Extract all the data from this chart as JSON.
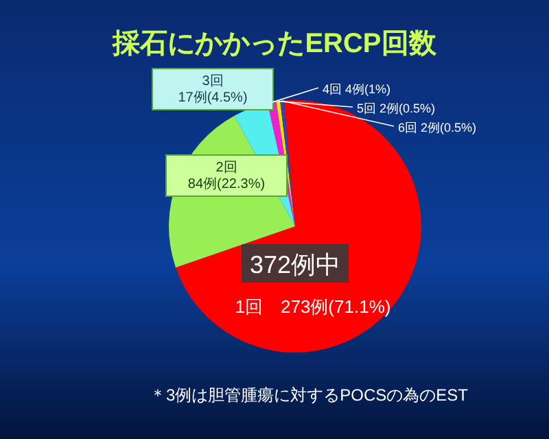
{
  "chart_data": {
    "type": "pie",
    "title": "採石にかかったERCP回数",
    "categories": [
      "1回　273例(71.1%)",
      "2回\n84例(22.3%)",
      "3回\n17例(4.5%)",
      "4回 4例(1%)",
      "5回 2例(0.5%)",
      "6回 2例(0.5%)"
    ],
    "values": [
      71.1,
      22.3,
      4.5,
      1.1,
      0.5,
      0.5
    ],
    "colors": [
      "#ff0000",
      "#99ee55",
      "#55eeee",
      "#ee22cc",
      "#ffdd00",
      "#3344aa"
    ],
    "annotations": [
      "372例中",
      "＊3例は胆管腫瘍に対するPOCSの為のEST"
    ]
  }
}
